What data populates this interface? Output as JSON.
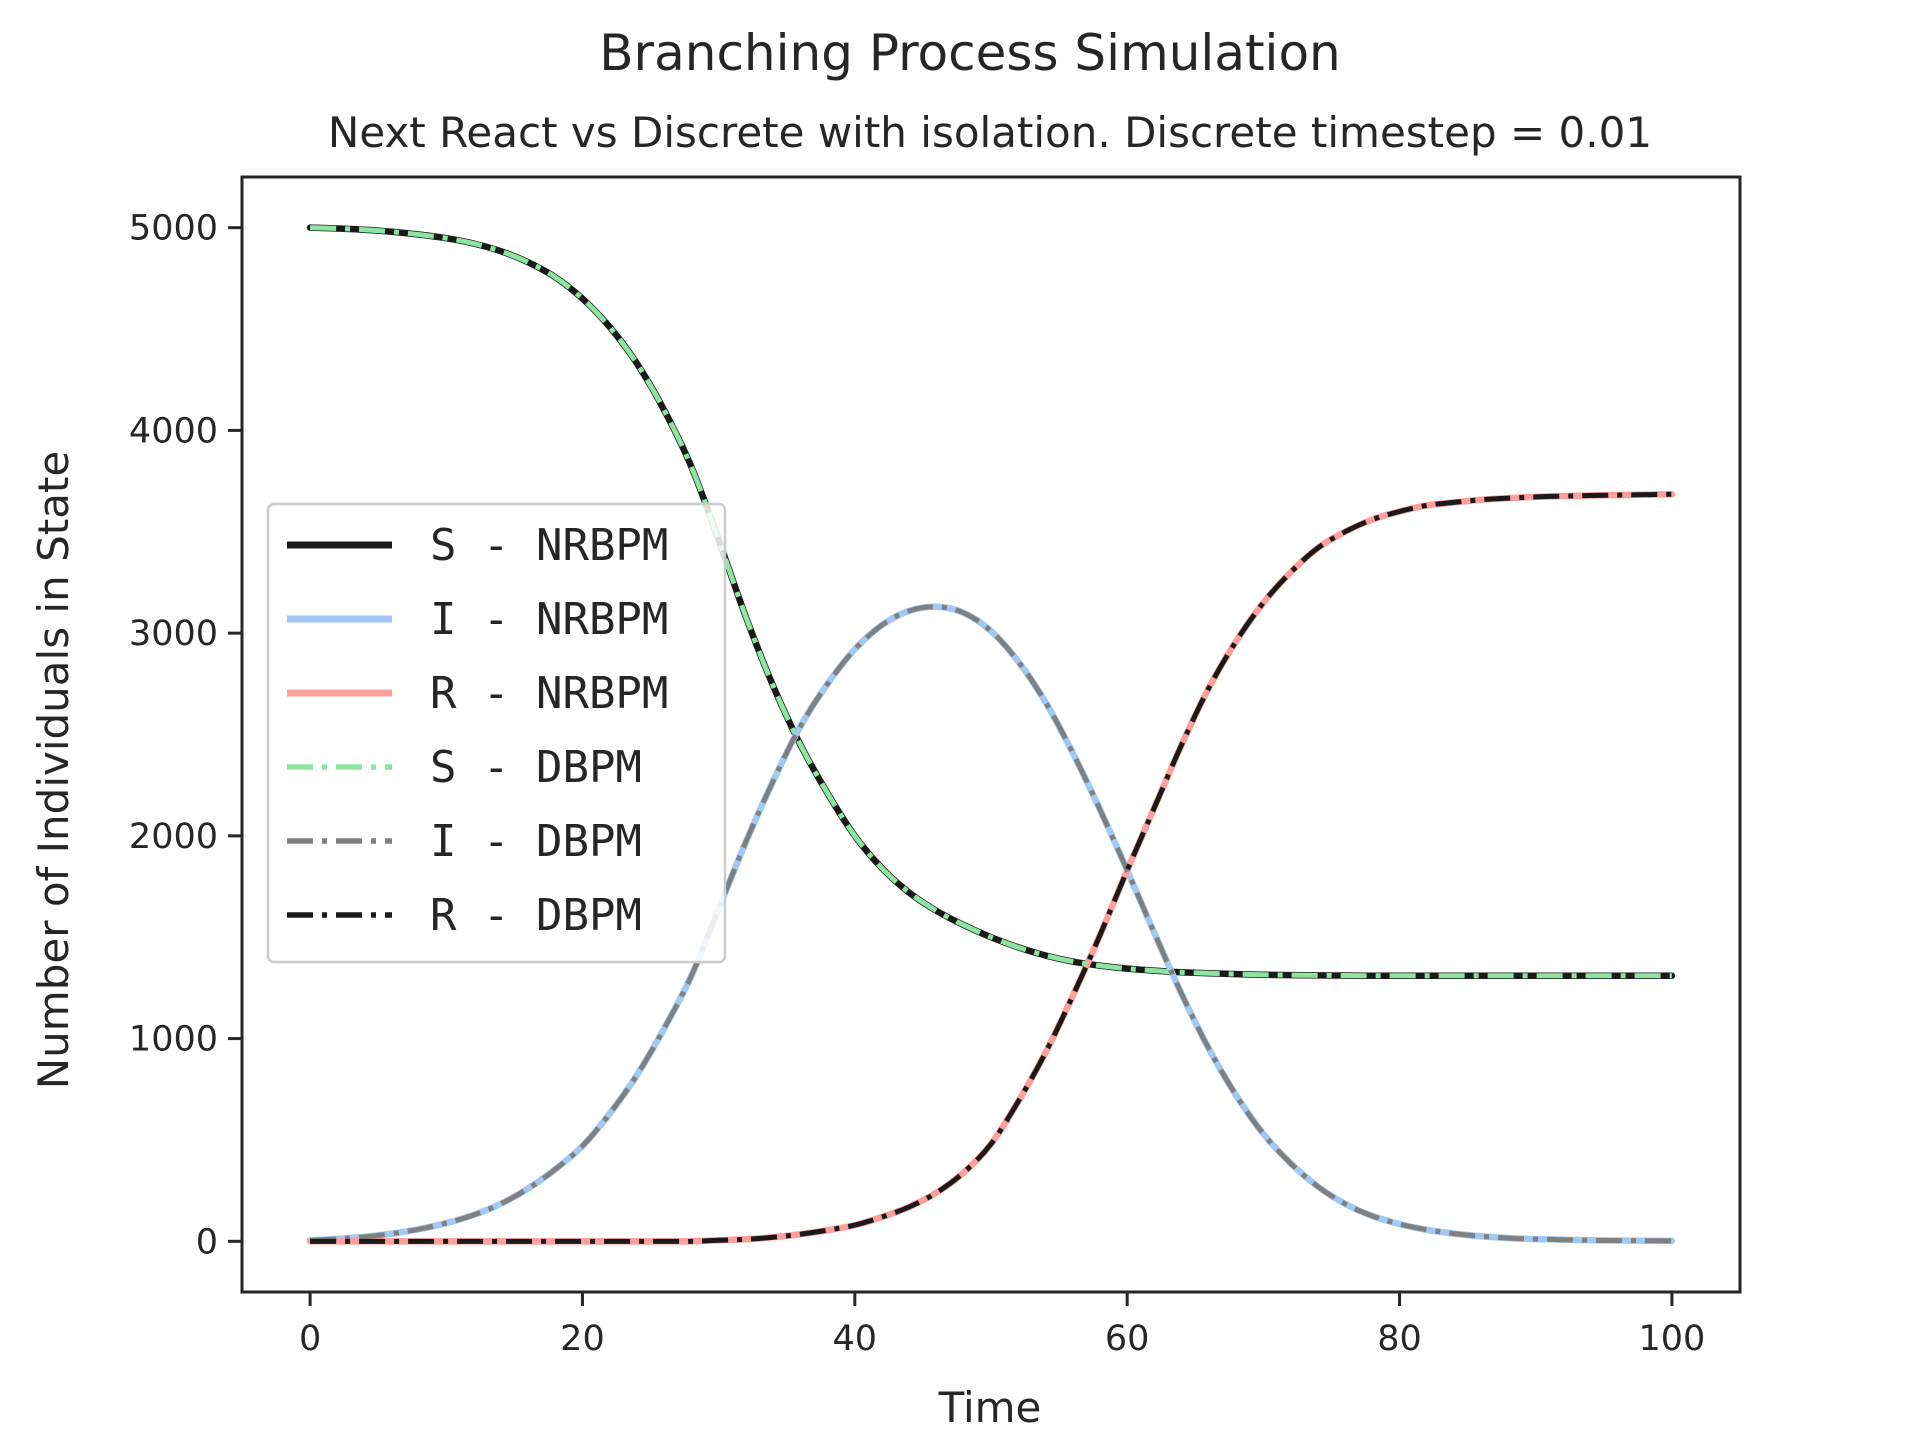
{
  "chart_data": {
    "type": "line",
    "title": "Branching Process Simulation",
    "subtitle": "Next React vs Discrete with isolation. Discrete timestep = 0.01",
    "xlabel": "Time",
    "ylabel": "Number of Individuals in State",
    "xlim": [
      -5,
      105
    ],
    "ylim": [
      -250,
      5250
    ],
    "xticks": [
      0,
      20,
      40,
      60,
      80,
      100
    ],
    "yticks": [
      0,
      1000,
      2000,
      3000,
      4000,
      5000
    ],
    "grid": false,
    "legend_position": "center-left",
    "x": [
      0,
      2,
      4,
      6,
      8,
      10,
      12,
      14,
      16,
      18,
      20,
      22,
      24,
      26,
      28,
      30,
      32,
      34,
      36,
      38,
      40,
      42,
      44,
      46,
      48,
      50,
      52,
      54,
      56,
      58,
      60,
      62,
      64,
      66,
      68,
      70,
      72,
      74,
      76,
      78,
      80,
      82,
      84,
      86,
      88,
      90,
      92,
      94,
      96,
      98,
      100
    ],
    "series": [
      {
        "name": "S - NRBPM",
        "color": "#1a1a1a",
        "style": "solid",
        "values": [
          5000,
          4996,
          4990,
          4980,
          4966,
          4948,
          4922,
          4884,
          4830,
          4756,
          4650,
          4510,
          4330,
          4100,
          3820,
          3460,
          3080,
          2740,
          2450,
          2210,
          2000,
          1840,
          1720,
          1630,
          1560,
          1500,
          1450,
          1410,
          1380,
          1360,
          1345,
          1335,
          1327,
          1322,
          1318,
          1315,
          1313,
          1312,
          1311,
          1310,
          1310,
          1310,
          1310,
          1310,
          1310,
          1310,
          1310,
          1310,
          1310,
          1310,
          1310
        ]
      },
      {
        "name": "I - NRBPM",
        "color": "#a1c9f4",
        "style": "solid",
        "values": [
          5,
          12,
          22,
          38,
          60,
          90,
          130,
          185,
          260,
          355,
          470,
          630,
          820,
          1050,
          1310,
          1640,
          1970,
          2270,
          2540,
          2750,
          2920,
          3040,
          3110,
          3130,
          3100,
          3010,
          2860,
          2660,
          2410,
          2130,
          1830,
          1520,
          1220,
          950,
          720,
          530,
          385,
          270,
          185,
          125,
          85,
          57,
          38,
          25,
          16,
          11,
          8,
          5,
          4,
          3,
          2
        ]
      },
      {
        "name": "R - NRBPM",
        "color": "#ff9f9b",
        "style": "solid",
        "values": [
          0,
          0,
          0,
          0,
          0,
          0,
          0,
          0,
          0,
          0,
          0,
          0,
          0,
          0,
          0,
          5,
          10,
          20,
          35,
          55,
          80,
          120,
          170,
          240,
          340,
          480,
          690,
          930,
          1210,
          1510,
          1830,
          2140,
          2450,
          2730,
          2960,
          3150,
          3300,
          3420,
          3500,
          3560,
          3600,
          3630,
          3645,
          3658,
          3666,
          3672,
          3676,
          3679,
          3681,
          3683,
          3685
        ]
      },
      {
        "name": "S - DBPM",
        "color": "#8de5a1",
        "style": "dashdot",
        "values": [
          5000,
          4996,
          4990,
          4980,
          4966,
          4948,
          4922,
          4884,
          4830,
          4756,
          4650,
          4510,
          4330,
          4100,
          3820,
          3460,
          3080,
          2740,
          2450,
          2210,
          2000,
          1840,
          1720,
          1630,
          1560,
          1500,
          1450,
          1410,
          1380,
          1360,
          1345,
          1335,
          1327,
          1322,
          1318,
          1315,
          1313,
          1312,
          1311,
          1310,
          1310,
          1310,
          1310,
          1310,
          1310,
          1310,
          1310,
          1310,
          1310,
          1310,
          1310
        ]
      },
      {
        "name": "I - DBPM",
        "color": "#808080",
        "style": "dashdot",
        "values": [
          5,
          12,
          22,
          38,
          60,
          90,
          130,
          185,
          260,
          355,
          470,
          630,
          820,
          1050,
          1310,
          1640,
          1970,
          2270,
          2540,
          2750,
          2920,
          3040,
          3110,
          3130,
          3100,
          3010,
          2860,
          2660,
          2410,
          2130,
          1830,
          1520,
          1220,
          950,
          720,
          530,
          385,
          270,
          185,
          125,
          85,
          57,
          38,
          25,
          16,
          11,
          8,
          5,
          4,
          3,
          2
        ]
      },
      {
        "name": "R - DBPM",
        "color": "#1a1a1a",
        "style": "dashdot",
        "values": [
          0,
          0,
          0,
          0,
          0,
          0,
          0,
          0,
          0,
          0,
          0,
          0,
          0,
          0,
          0,
          5,
          10,
          20,
          35,
          55,
          80,
          120,
          170,
          240,
          340,
          480,
          690,
          930,
          1210,
          1510,
          1830,
          2140,
          2450,
          2730,
          2960,
          3150,
          3300,
          3420,
          3500,
          3560,
          3600,
          3630,
          3645,
          3658,
          3666,
          3672,
          3676,
          3679,
          3681,
          3683,
          3685
        ]
      }
    ]
  }
}
